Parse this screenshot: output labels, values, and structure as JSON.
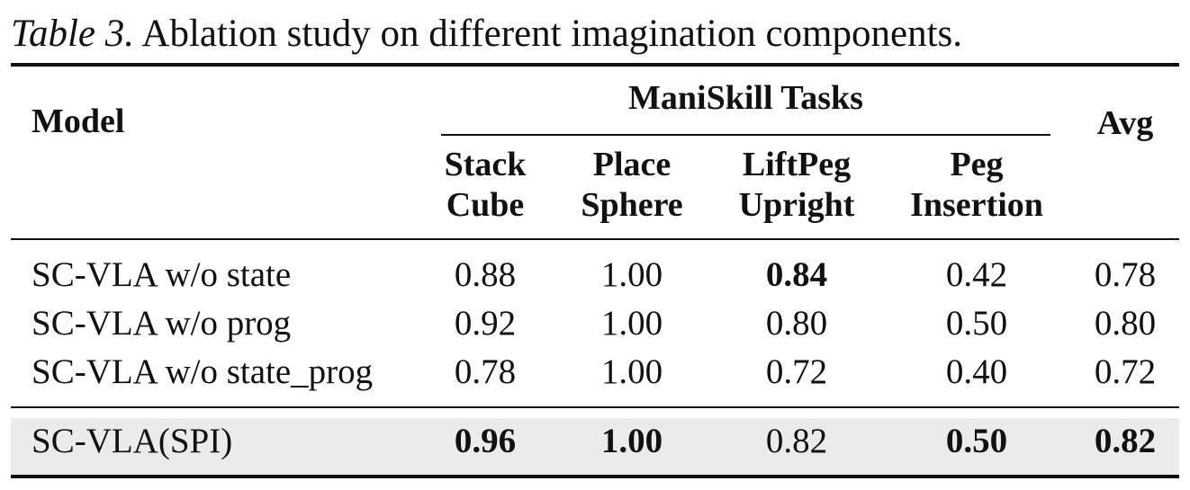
{
  "caption": {
    "label": "Table 3.",
    "text": "Ablation study on different imagination components."
  },
  "header": {
    "model": "Model",
    "group": "ManiSkill Tasks",
    "avg": "Avg",
    "columns": [
      {
        "line1": "Stack",
        "line2": "Cube"
      },
      {
        "line1": "Place",
        "line2": "Sphere"
      },
      {
        "line1": "LiftPeg",
        "line2": "Upright"
      },
      {
        "line1": "Peg",
        "line2": "Insertion"
      }
    ]
  },
  "rows": [
    {
      "model": "SC-VLA w/o state",
      "values": [
        "0.88",
        "1.00",
        "0.84",
        "0.42",
        "0.78"
      ],
      "bold": [
        false,
        false,
        true,
        false,
        false
      ]
    },
    {
      "model": "SC-VLA w/o prog",
      "values": [
        "0.92",
        "1.00",
        "0.80",
        "0.50",
        "0.80"
      ],
      "bold": [
        false,
        false,
        false,
        false,
        false
      ]
    },
    {
      "model": "SC-VLA w/o state_prog",
      "values": [
        "0.78",
        "1.00",
        "0.72",
        "0.40",
        "0.72"
      ],
      "bold": [
        false,
        false,
        false,
        false,
        false
      ]
    },
    {
      "model": "SC-VLA(SPI)",
      "values": [
        "0.96",
        "1.00",
        "0.82",
        "0.50",
        "0.82"
      ],
      "bold": [
        true,
        true,
        false,
        true,
        true
      ],
      "highlighted": true
    }
  ]
}
